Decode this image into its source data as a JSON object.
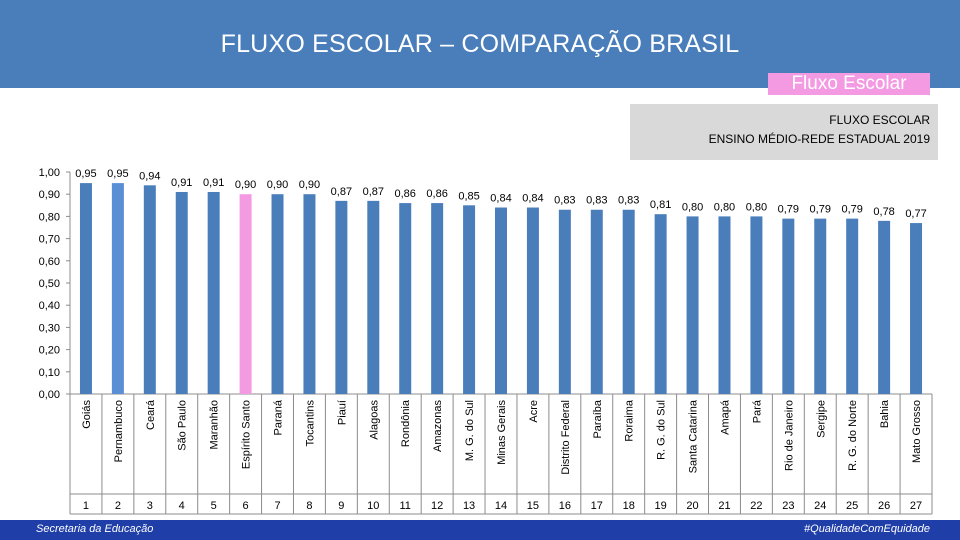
{
  "header": {
    "title": "FLUXO ESCOLAR – COMPARAÇÃO BRASIL"
  },
  "tag": {
    "label": "Fluxo Escolar"
  },
  "subtitle": {
    "line1": "FLUXO ESCOLAR",
    "line2": "ENSINO MÉDIO-REDE ESTADUAL 2019"
  },
  "footer": {
    "left": "Secretaria da Educação",
    "right": "#QualidadeComEquidade"
  },
  "colors": {
    "bar": "#4a7ebb",
    "highlight": "#f49ae3",
    "bar_alt": "#5a8fd6"
  },
  "chart_data": {
    "type": "bar",
    "categories": [
      "Goiás",
      "Pernambuco",
      "Ceará",
      "São Paulo",
      "Maranhão",
      "Espírito Santo",
      "Paraná",
      "Tocantins",
      "Piauí",
      "Alagoas",
      "Rondônia",
      "Amazonas",
      "M. G. do Sul",
      "Minas Gerais",
      "Acre",
      "Distrito Federal",
      "Paraíba",
      "Roraima",
      "R. G. do Sul",
      "Santa Catarina",
      "Amapá",
      "Pará",
      "Rio de Janeiro",
      "Sergipe",
      "R. G. do Norte",
      "Bahia",
      "Mato Grosso"
    ],
    "values": [
      0.95,
      0.95,
      0.94,
      0.91,
      0.91,
      0.9,
      0.9,
      0.9,
      0.87,
      0.87,
      0.86,
      0.86,
      0.85,
      0.84,
      0.84,
      0.83,
      0.83,
      0.83,
      0.81,
      0.8,
      0.8,
      0.8,
      0.79,
      0.79,
      0.79,
      0.78,
      0.77
    ],
    "value_labels": [
      "0,95",
      "0,95",
      "0,94",
      "0,91",
      "0,91",
      "0,90",
      "0,90",
      "0,90",
      "0,87",
      "0,87",
      "0,86",
      "0,86",
      "0,85",
      "0,84",
      "0,84",
      "0,83",
      "0,83",
      "0,83",
      "0,81",
      "0,80",
      "0,80",
      "0,80",
      "0,79",
      "0,79",
      "0,79",
      "0,78",
      "0,77"
    ],
    "ranks": [
      "1",
      "2",
      "3",
      "4",
      "5",
      "6",
      "7",
      "8",
      "9",
      "10",
      "11",
      "12",
      "13",
      "14",
      "15",
      "16",
      "17",
      "18",
      "19",
      "20",
      "21",
      "22",
      "23",
      "24",
      "25",
      "26",
      "27"
    ],
    "highlight_category": "Espírito Santo",
    "secondary_category": "Pernambuco",
    "ylim": [
      0,
      1
    ],
    "yticks": [
      "0,00",
      "0,10",
      "0,20",
      "0,30",
      "0,40",
      "0,50",
      "0,60",
      "0,70",
      "0,80",
      "0,90",
      "1,00"
    ],
    "grid": false
  }
}
